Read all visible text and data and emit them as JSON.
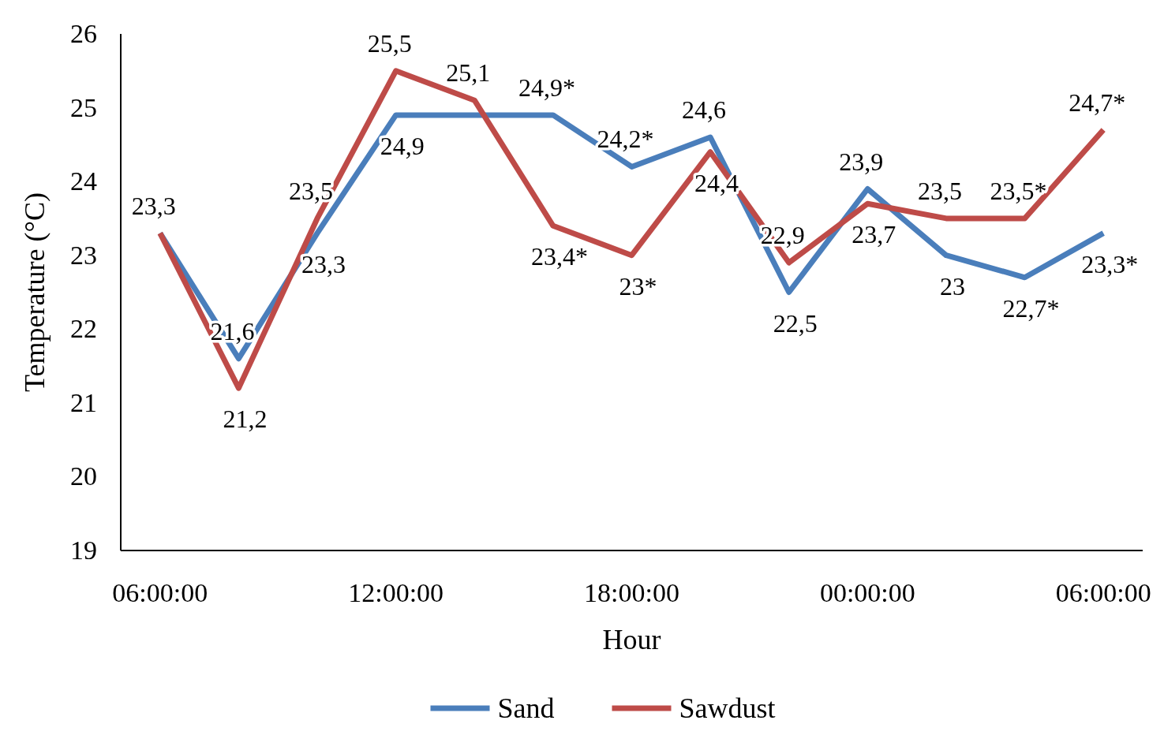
{
  "chart_data": {
    "type": "line",
    "xlabel": "Hour",
    "ylabel": "Temperature (°C)",
    "categories": [
      "06:00:00",
      null,
      null,
      "12:00:00",
      null,
      null,
      "18:00:00",
      null,
      null,
      "00:00:00",
      null,
      null,
      "06:00:00"
    ],
    "ylim": [
      19,
      26
    ],
    "yticks": [
      19,
      20,
      21,
      22,
      23,
      24,
      25,
      26
    ],
    "grid": false,
    "legend": "bottom",
    "marker": "none",
    "line_style": "solid",
    "series": [
      {
        "name": "Sand",
        "color": "#4a7ebb",
        "values": [
          23.3,
          21.6,
          23.3,
          24.9,
          24.9,
          24.9,
          24.2,
          24.6,
          22.5,
          23.9,
          23,
          22.7,
          23.3
        ],
        "value_labels": [
          "23,3",
          "21,6",
          "23,3",
          "24,9",
          null,
          "24,9*",
          "24,2*",
          "24,6",
          "22,5",
          "23,9",
          "23",
          "22,7*",
          "23,3*"
        ]
      },
      {
        "name": "Sawdust",
        "color": "#be4b48",
        "values": [
          23.3,
          21.2,
          23.5,
          25.5,
          25.1,
          23.4,
          23,
          24.4,
          22.9,
          23.7,
          23.5,
          23.5,
          24.7
        ],
        "value_labels": [
          null,
          "21,2",
          "23,5",
          "25,5",
          "25,1",
          "23,4*",
          "23*",
          "24,4",
          "22,9",
          "23,7",
          "23,5",
          "23,5*",
          "24,7*"
        ]
      }
    ]
  }
}
